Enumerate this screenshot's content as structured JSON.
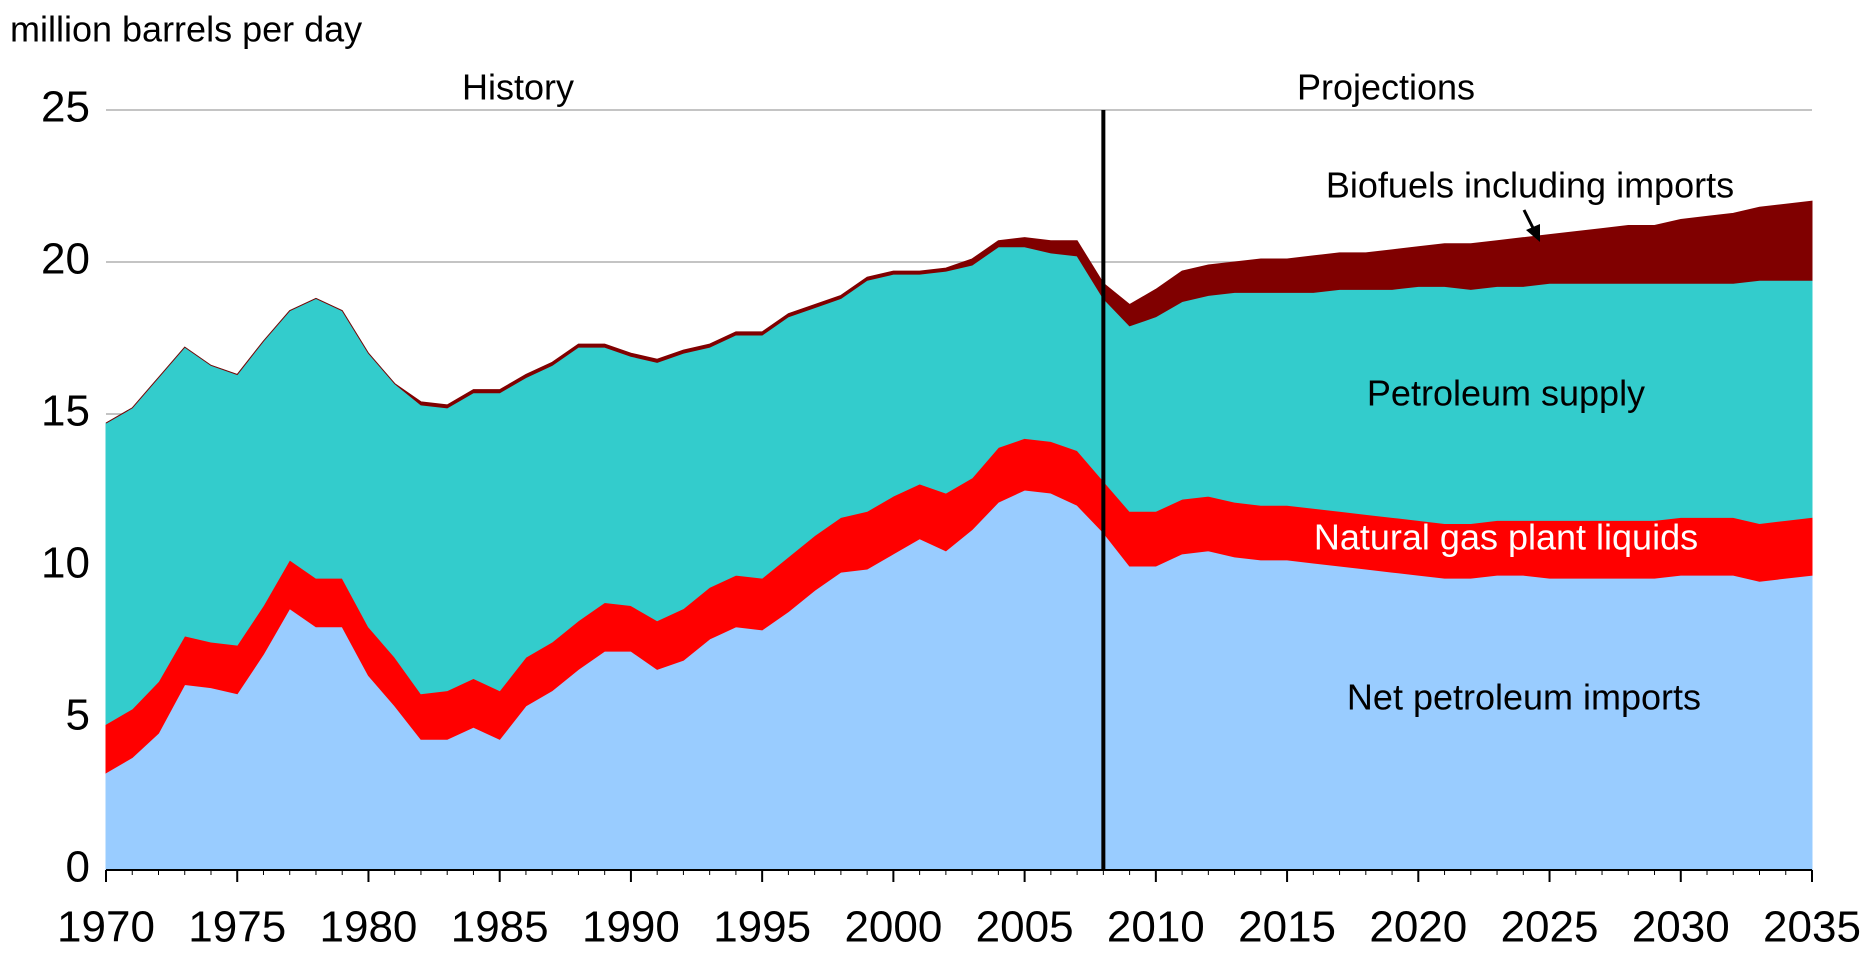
{
  "chart_data": {
    "type": "stacked_area",
    "y_axis_label": "million barrels per day",
    "annotations": {
      "history": "History",
      "projections": "Projections",
      "divider_x": 2008
    },
    "x": [
      1970,
      1971,
      1972,
      1973,
      1974,
      1975,
      1976,
      1977,
      1978,
      1979,
      1980,
      1981,
      1982,
      1983,
      1984,
      1985,
      1986,
      1987,
      1988,
      1989,
      1990,
      1991,
      1992,
      1993,
      1994,
      1995,
      1996,
      1997,
      1998,
      1999,
      2000,
      2001,
      2002,
      2003,
      2004,
      2005,
      2006,
      2007,
      2008,
      2009,
      2010,
      2011,
      2012,
      2013,
      2014,
      2015,
      2016,
      2017,
      2018,
      2019,
      2020,
      2021,
      2022,
      2023,
      2024,
      2025,
      2026,
      2027,
      2028,
      2029,
      2030,
      2031,
      2032,
      2033,
      2034,
      2035
    ],
    "xlim": [
      1970,
      2035
    ],
    "xticks": [
      1970,
      1975,
      1980,
      1985,
      1990,
      1995,
      2000,
      2005,
      2010,
      2015,
      2020,
      2025,
      2030,
      2035
    ],
    "ylim": [
      0,
      25
    ],
    "yticks": [
      0,
      5,
      10,
      15,
      20,
      25
    ],
    "grid": true,
    "series": [
      {
        "name": "Net petroleum imports",
        "color": "#99ccff",
        "label_color": "#000000",
        "values": [
          3.2,
          3.7,
          4.5,
          6.1,
          6.0,
          5.8,
          7.1,
          8.6,
          8.0,
          8.0,
          6.4,
          5.4,
          4.3,
          4.3,
          4.7,
          4.3,
          5.4,
          5.9,
          6.6,
          7.2,
          7.2,
          6.6,
          6.9,
          7.6,
          8.0,
          7.9,
          8.5,
          9.2,
          9.8,
          9.9,
          10.4,
          10.9,
          10.5,
          11.2,
          12.1,
          12.5,
          12.4,
          12.0,
          11.1,
          10.0,
          10.0,
          10.4,
          10.5,
          10.3,
          10.2,
          10.2,
          10.1,
          10.0,
          9.9,
          9.8,
          9.7,
          9.6,
          9.6,
          9.7,
          9.7,
          9.6,
          9.6,
          9.6,
          9.6,
          9.6,
          9.7,
          9.7,
          9.7,
          9.5,
          9.6,
          9.7
        ]
      },
      {
        "name": "Natural gas plant liquids",
        "color": "#ff0000",
        "label_color": "#ffffff",
        "values": [
          1.6,
          1.6,
          1.7,
          1.6,
          1.5,
          1.6,
          1.6,
          1.6,
          1.6,
          1.6,
          1.6,
          1.6,
          1.5,
          1.6,
          1.6,
          1.6,
          1.6,
          1.6,
          1.6,
          1.6,
          1.5,
          1.6,
          1.7,
          1.7,
          1.7,
          1.7,
          1.8,
          1.8,
          1.8,
          1.9,
          1.9,
          1.8,
          1.9,
          1.7,
          1.8,
          1.7,
          1.7,
          1.8,
          1.7,
          1.8,
          1.8,
          1.8,
          1.8,
          1.8,
          1.8,
          1.8,
          1.8,
          1.8,
          1.8,
          1.8,
          1.8,
          1.8,
          1.8,
          1.8,
          1.8,
          1.9,
          1.9,
          1.9,
          1.9,
          1.9,
          1.9,
          1.9,
          1.9,
          1.9,
          1.9,
          1.9
        ]
      },
      {
        "name": "Petroleum supply",
        "color": "#33cccc",
        "label_color": "#000000",
        "values": [
          9.9,
          9.9,
          10.0,
          9.5,
          9.1,
          8.9,
          8.7,
          8.2,
          9.2,
          8.8,
          9.0,
          9.0,
          9.5,
          9.3,
          9.4,
          9.8,
          9.2,
          9.1,
          9.0,
          8.4,
          8.2,
          8.5,
          8.4,
          7.9,
          7.9,
          8.0,
          7.9,
          7.5,
          7.2,
          7.6,
          7.3,
          6.9,
          7.3,
          7.0,
          6.6,
          6.3,
          6.2,
          6.4,
          6.0,
          6.1,
          6.4,
          6.5,
          6.6,
          6.9,
          7.0,
          7.0,
          7.1,
          7.3,
          7.4,
          7.5,
          7.7,
          7.8,
          7.7,
          7.7,
          7.7,
          7.8,
          7.8,
          7.8,
          7.8,
          7.8,
          7.7,
          7.7,
          7.7,
          8.0,
          7.9,
          7.8
        ]
      },
      {
        "name": "Biofuels including imports",
        "color": "#800000",
        "label_color": "#000000",
        "values": [
          0,
          0,
          0,
          0,
          0,
          0,
          0,
          0,
          0,
          0,
          0,
          0,
          0.1,
          0.1,
          0.1,
          0.1,
          0.1,
          0.1,
          0.1,
          0.1,
          0.1,
          0.1,
          0.1,
          0.1,
          0.1,
          0.1,
          0.1,
          0.1,
          0.1,
          0.1,
          0.1,
          0.1,
          0.1,
          0.2,
          0.2,
          0.3,
          0.4,
          0.5,
          0.5,
          0.7,
          0.9,
          1.0,
          1.0,
          1.0,
          1.1,
          1.1,
          1.2,
          1.2,
          1.2,
          1.3,
          1.3,
          1.4,
          1.5,
          1.5,
          1.6,
          1.6,
          1.7,
          1.8,
          1.9,
          1.9,
          2.1,
          2.2,
          2.3,
          2.4,
          2.5,
          2.6
        ]
      }
    ]
  }
}
